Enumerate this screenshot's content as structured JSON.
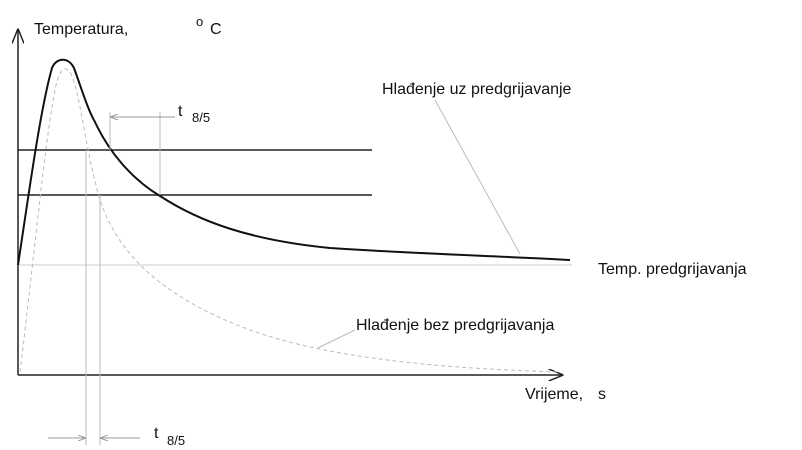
{
  "y_axis": {
    "label": "Temperatura,",
    "unit_sup": "o",
    "unit": "C"
  },
  "x_axis": {
    "label": "Vrijeme,",
    "unit": "s"
  },
  "curves": {
    "with_preheat": "Hlađenje uz predgrijavanje",
    "without_preheat": "Hlađenje bez predgrijavanja",
    "preheat_level": "Temp. predgrijavanja"
  },
  "t85_top": {
    "t": "t",
    "sub": "8/5"
  },
  "t85_bottom": {
    "t": "t",
    "sub": "8/5"
  }
}
